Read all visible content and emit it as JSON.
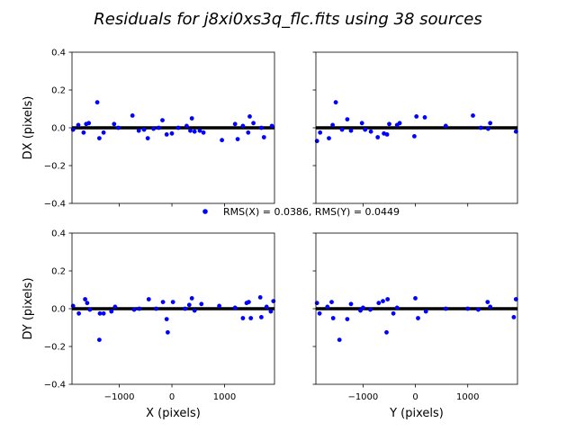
{
  "chart_data": {
    "type": "scatter",
    "title": "Residuals for j8xi0xs3q_flc.fits using 38 sources",
    "legend": {
      "label": "RMS(X) = 0.0386, RMS(Y) = 0.0449",
      "marker_color": "#0000ff",
      "placement": "center"
    },
    "series_color": "#0000ff",
    "zero_line_color": "#000000",
    "panels": [
      {
        "id": "dx_vs_x",
        "xlabel": "",
        "ylabel": "DX (pixels)",
        "xlim": [
          -1900,
          1950
        ],
        "ylim": [
          -0.4,
          0.4
        ],
        "yticks": [
          "0.4",
          "0.2",
          "0.0",
          "−0.2",
          "−0.4"
        ],
        "show_yticklabels": true,
        "xticks": [
          "−1000",
          "0",
          "1000"
        ],
        "show_xticklabels": false,
        "x": [
          -1880,
          -1780,
          -1680,
          -1630,
          -1580,
          -1420,
          -1380,
          -1300,
          -1100,
          -1020,
          -750,
          -630,
          -530,
          -460,
          -350,
          -250,
          -180,
          -100,
          0,
          120,
          280,
          350,
          380,
          430,
          530,
          600,
          950,
          1200,
          1250,
          1350,
          1450,
          1480,
          1550,
          1700,
          1750,
          1900
        ],
        "y": [
          -0.01,
          0.015,
          -0.025,
          0.02,
          0.025,
          0.135,
          -0.055,
          -0.025,
          0.02,
          0.0,
          0.065,
          -0.015,
          -0.01,
          -0.055,
          -0.005,
          0.0,
          0.04,
          -0.035,
          -0.03,
          0.0,
          0.01,
          -0.015,
          0.05,
          -0.02,
          -0.015,
          -0.025,
          -0.065,
          0.02,
          -0.06,
          0.01,
          -0.025,
          0.06,
          0.025,
          0.0,
          -0.05,
          0.01
        ]
      },
      {
        "id": "dx_vs_y",
        "xlabel": "",
        "ylabel": "",
        "xlim": [
          -1900,
          1950
        ],
        "ylim": [
          -0.4,
          0.4
        ],
        "yticks": [
          "0.4",
          "0.2",
          "0.0",
          "−0.2",
          "−0.4"
        ],
        "show_yticklabels": false,
        "xticks": [
          "−1000",
          "0",
          "1000"
        ],
        "show_xticklabels": false,
        "x": [
          -1880,
          -1820,
          -1650,
          -1580,
          -1520,
          -1400,
          -1300,
          -1230,
          -1020,
          -960,
          -850,
          -720,
          -600,
          -540,
          -500,
          -350,
          -300,
          -20,
          20,
          180,
          580,
          1100,
          1250,
          1390,
          1430,
          1920
        ],
        "y": [
          -0.07,
          -0.025,
          -0.055,
          0.015,
          0.135,
          -0.01,
          0.045,
          -0.015,
          0.025,
          -0.01,
          -0.02,
          -0.05,
          -0.03,
          -0.035,
          0.02,
          0.015,
          0.025,
          -0.045,
          0.06,
          0.055,
          0.01,
          0.065,
          0.0,
          -0.005,
          0.025,
          -0.02
        ]
      },
      {
        "id": "dy_vs_x",
        "xlabel": "X (pixels)",
        "ylabel": "DY (pixels)",
        "xlim": [
          -1900,
          1950
        ],
        "ylim": [
          -0.4,
          0.4
        ],
        "yticks": [
          "0.4",
          "0.2",
          "0.0",
          "−0.2",
          "−0.4"
        ],
        "show_yticklabels": true,
        "xticks": [
          "−1000",
          "0",
          "1000"
        ],
        "show_xticklabels": true,
        "x": [
          -1880,
          -1770,
          -1650,
          -1610,
          -1560,
          -1380,
          -1370,
          -1300,
          -1150,
          -1080,
          -720,
          -620,
          -440,
          -300,
          -170,
          -100,
          -80,
          20,
          250,
          330,
          380,
          430,
          560,
          900,
          1200,
          1350,
          1420,
          1460,
          1500,
          1680,
          1700,
          1800,
          1880,
          1930
        ],
        "y": [
          0.015,
          -0.025,
          0.05,
          0.03,
          -0.005,
          -0.165,
          -0.025,
          -0.025,
          -0.015,
          0.01,
          -0.005,
          0.0,
          0.05,
          0.0,
          0.035,
          -0.055,
          -0.125,
          0.035,
          0.0,
          0.02,
          0.055,
          -0.01,
          0.025,
          0.015,
          0.005,
          -0.05,
          0.03,
          0.035,
          -0.05,
          0.06,
          -0.045,
          0.01,
          -0.015,
          0.04
        ]
      },
      {
        "id": "dy_vs_y",
        "xlabel": "Y (pixels)",
        "ylabel": "",
        "xlim": [
          -1900,
          1950
        ],
        "ylim": [
          -0.4,
          0.4
        ],
        "yticks": [
          "0.4",
          "0.2",
          "0.0",
          "−0.2",
          "−0.4"
        ],
        "show_yticklabels": false,
        "xticks": [
          "−1000",
          "0",
          "1000"
        ],
        "show_xticklabels": true,
        "x": [
          -1880,
          -1830,
          -1680,
          -1600,
          -1570,
          -1450,
          -1300,
          -1230,
          -1050,
          -1000,
          -860,
          -700,
          -620,
          -550,
          -530,
          -420,
          -350,
          0,
          50,
          200,
          580,
          1000,
          1200,
          1380,
          1430,
          1880,
          1920
        ],
        "y": [
          0.03,
          -0.025,
          0.01,
          0.035,
          -0.05,
          -0.165,
          -0.055,
          0.025,
          -0.01,
          0.005,
          -0.005,
          0.03,
          0.04,
          -0.125,
          0.05,
          -0.025,
          0.005,
          0.055,
          -0.05,
          -0.015,
          0.0,
          0.0,
          -0.005,
          0.035,
          0.01,
          -0.045,
          0.05
        ]
      }
    ]
  }
}
